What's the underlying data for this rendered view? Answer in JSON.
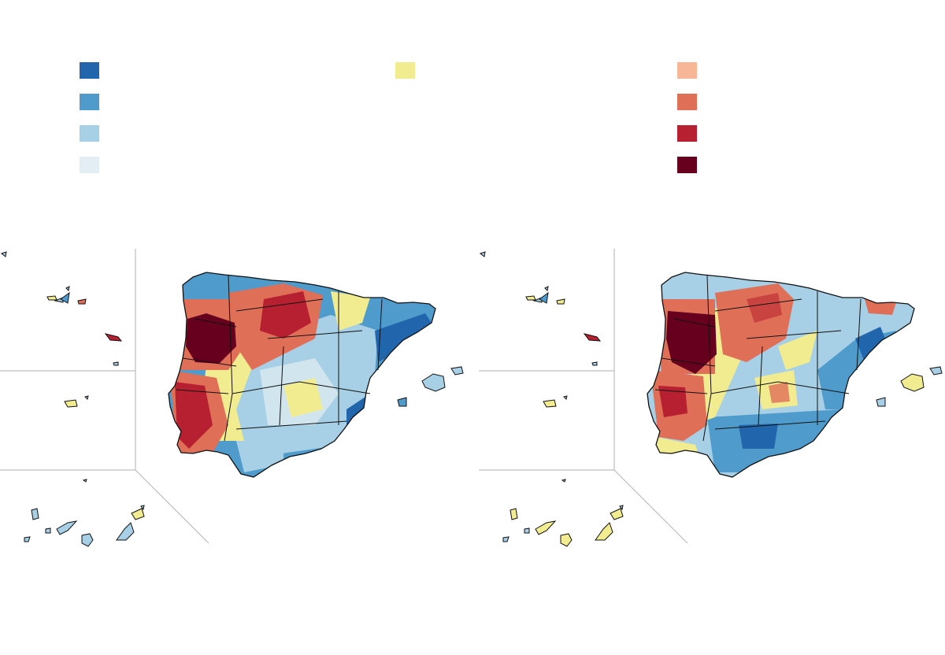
{
  "legend": {
    "low": [
      {
        "color": "#2166ac",
        "label": ""
      },
      {
        "color": "#4f9bcb",
        "label": ""
      },
      {
        "color": "#a7cfe5",
        "label": ""
      },
      {
        "color": "#e2eef4",
        "label": ""
      }
    ],
    "mid": [
      {
        "color": "#f2ec91",
        "label": ""
      }
    ],
    "high": [
      {
        "color": "#f6b697",
        "label": ""
      },
      {
        "color": "#e06f58",
        "label": ""
      },
      {
        "color": "#b72030",
        "label": ""
      },
      {
        "color": "#67001f",
        "label": ""
      }
    ]
  },
  "maps": [
    {
      "name": "map-left"
    },
    {
      "name": "map-right"
    }
  ]
}
